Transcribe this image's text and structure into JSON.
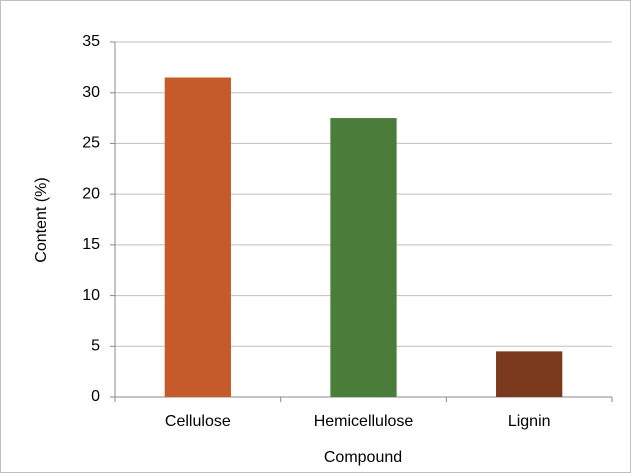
{
  "chart_data": {
    "type": "bar",
    "categories": [
      "Cellulose",
      "Hemicellulose",
      "Lignin"
    ],
    "values": [
      31.5,
      27.5,
      4.5
    ],
    "colors": [
      "#c55a2a",
      "#4a7c3a",
      "#7b3a1e"
    ],
    "x_label": "Compound",
    "y_label": "Content (%)",
    "ylim": [
      0,
      35
    ],
    "yticks": [
      0,
      5,
      10,
      15,
      20,
      25,
      30,
      35
    ],
    "grid": true
  }
}
